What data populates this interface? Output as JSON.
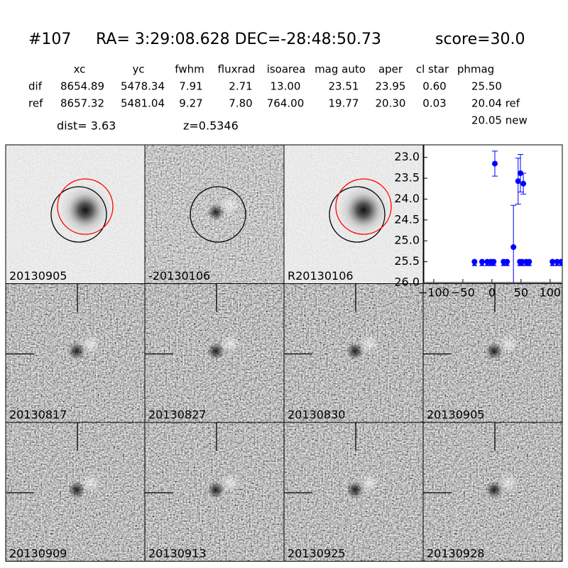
{
  "header": {
    "id": "#107",
    "coords": "RA= 3:29:08.628 DEC=-28:48:50.73",
    "score": "score=30.0"
  },
  "table": {
    "columns": [
      "xc",
      "yc",
      "fwhm",
      "fluxrad",
      "isoarea",
      "mag auto",
      "aper",
      "cl star",
      "phmag"
    ],
    "rows": [
      {
        "name": "dif",
        "cells": [
          "8654.89",
          "5478.34",
          "7.91",
          "2.71",
          "13.00",
          "23.51",
          "23.95",
          "0.60",
          "25.50"
        ]
      },
      {
        "name": "ref",
        "cells": [
          "8657.32",
          "5481.04",
          "9.27",
          "7.80",
          "764.00",
          "19.77",
          "20.30",
          "0.03",
          "20.04 ref"
        ]
      }
    ],
    "extra": "20.05 new"
  },
  "info": {
    "dist": "dist=  3.63",
    "z": "z=0.5346"
  },
  "panels": [
    {
      "label": "20130905",
      "kind": "galaxy",
      "label_color": "#000000"
    },
    {
      "label": "-20130106",
      "kind": "diff",
      "label_color": "#000000"
    },
    {
      "label": "R20130106",
      "kind": "galaxy",
      "label_color": "#000000"
    },
    {
      "label": "20130817",
      "kind": "cutout",
      "label_color": "#000000"
    },
    {
      "label": "20130827",
      "kind": "cutout",
      "label_color": "#000000"
    },
    {
      "label": "20130830",
      "kind": "cutout",
      "label_color": "#000000"
    },
    {
      "label": "20130905",
      "kind": "cutout",
      "label_color": "#ff0000"
    },
    {
      "label": "20130909",
      "kind": "cutout",
      "label_color": "#000000"
    },
    {
      "label": "20130913",
      "kind": "cutout",
      "label_color": "#000000"
    },
    {
      "label": "20130925",
      "kind": "cutout",
      "label_color": "#000000"
    },
    {
      "label": "20130928",
      "kind": "cutout",
      "label_color": "#000000"
    }
  ],
  "chart_data": {
    "type": "errorbar",
    "color": "#0000ff",
    "x": [
      5,
      37,
      45,
      49,
      54
    ],
    "values": [
      23.15,
      25.15,
      23.57,
      23.38,
      23.63
    ],
    "errors": [
      0.3,
      1.0,
      0.55,
      0.45,
      0.25
    ],
    "limit_x": [
      -30,
      -17,
      -8,
      -2,
      3,
      20,
      26,
      48,
      52,
      59,
      64,
      104,
      112,
      119
    ],
    "limit_values": [
      25.5,
      25.5,
      25.5,
      25.5,
      25.5,
      25.5,
      25.5,
      25.5,
      25.5,
      25.5,
      25.5,
      25.5,
      25.5,
      25.5
    ],
    "xlim": [
      -117,
      121
    ],
    "ylim": [
      26.0,
      22.7
    ],
    "xticks": [
      {
        "value": -100,
        "label": "−100"
      },
      {
        "value": -50,
        "label": "−50"
      },
      0,
      50,
      100
    ],
    "yticks": [
      {
        "value": 23,
        "label": "23.0"
      },
      23.5,
      {
        "value": 24,
        "label": "24.0"
      },
      24.5,
      {
        "value": 25,
        "label": "25.0"
      },
      25.5,
      {
        "value": 26,
        "label": "26.0"
      }
    ]
  }
}
